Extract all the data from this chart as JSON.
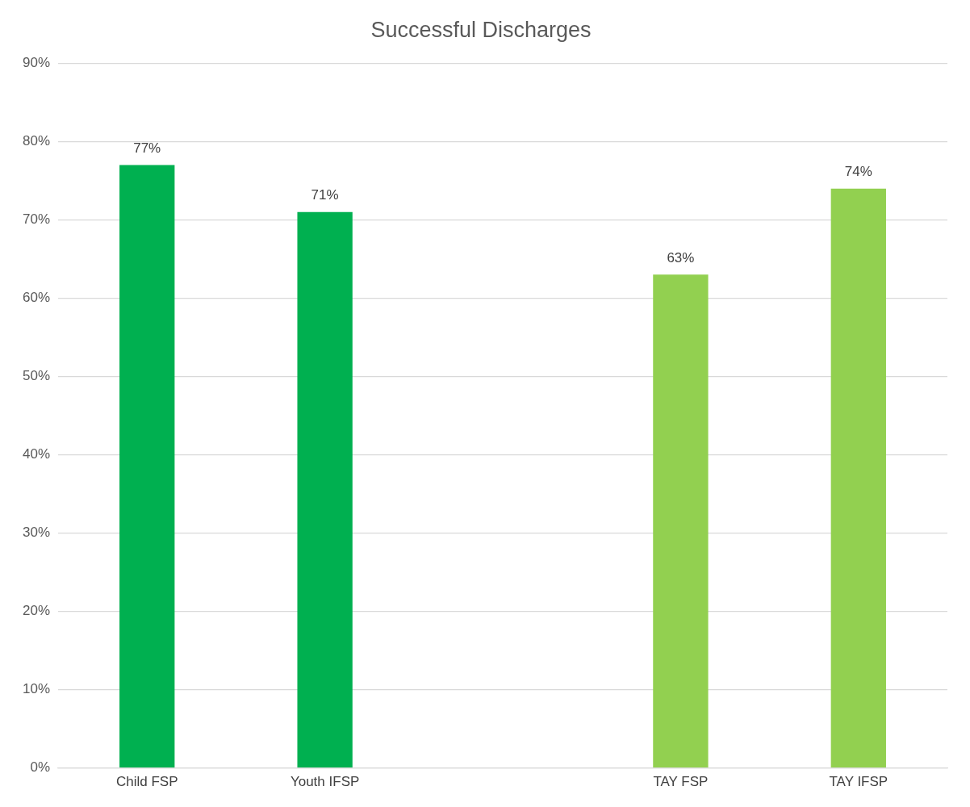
{
  "chart_data": {
    "type": "bar",
    "title": "Successful Discharges",
    "categories": [
      "Child FSP",
      "Youth IFSP",
      null,
      "TAY FSP",
      "TAY IFSP"
    ],
    "values": [
      77,
      71,
      null,
      63,
      74
    ],
    "colors": [
      "#00b050",
      "#00b050",
      "#92d050",
      "#92d050",
      "#92d050"
    ],
    "value_labels": [
      "77%",
      "71%",
      null,
      "63%",
      "74%"
    ],
    "ylim": [
      0,
      90
    ],
    "yticks": [
      {
        "value": 0,
        "label": "0%"
      },
      {
        "value": 10,
        "label": "10%"
      },
      {
        "value": 20,
        "label": "20%"
      },
      {
        "value": 30,
        "label": "30%"
      },
      {
        "value": 40,
        "label": "40%"
      },
      {
        "value": 50,
        "label": "50%"
      },
      {
        "value": 60,
        "label": "60%"
      },
      {
        "value": 70,
        "label": "70%"
      },
      {
        "value": 80,
        "label": "80%"
      },
      {
        "value": 90,
        "label": "90%"
      }
    ],
    "grid": "y",
    "legend": false
  }
}
